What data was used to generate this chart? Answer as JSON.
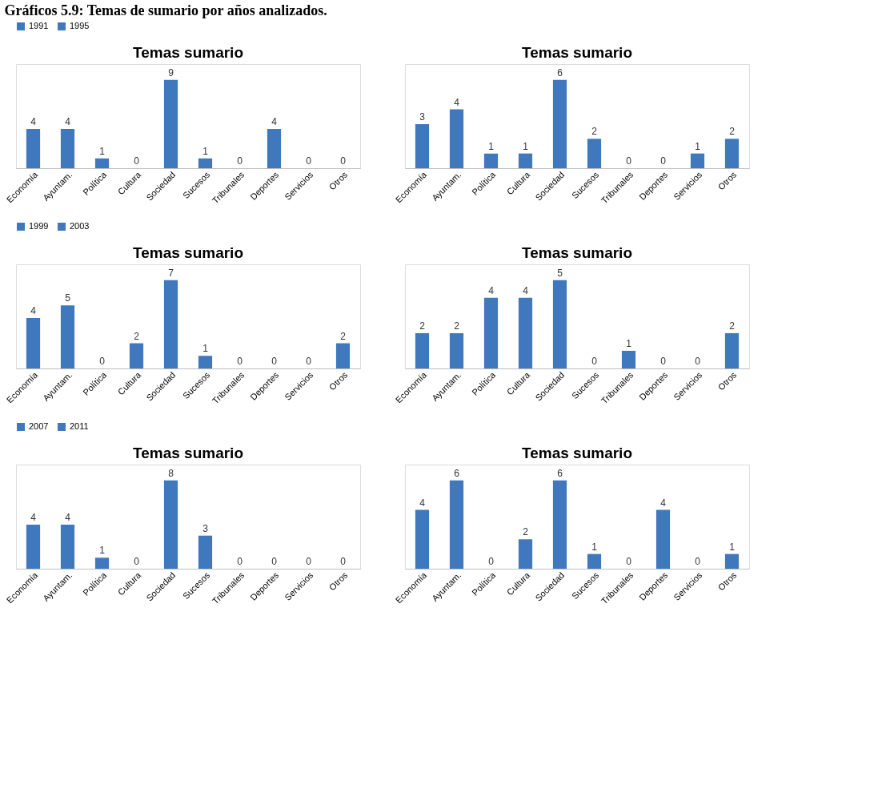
{
  "chart_data": [
    {
      "type": "bar",
      "title": "Temas sumario",
      "annotations": [
        "Gráficos 5.9: Temas de sumario por años analizados."
      ],
      "categories": [
        "Economía",
        "Ayuntam.",
        "Política",
        "Cultura",
        "Sociedad",
        "Sucesos",
        "Tribunales",
        "Deportes",
        "Servicios",
        "Otros"
      ],
      "series": [
        {
          "name": "1991",
          "color": "#4078be",
          "values": [
            4,
            4,
            1,
            0,
            9,
            1,
            0,
            4,
            0,
            0
          ]
        }
      ],
      "data_labels": true,
      "legend": "top",
      "tick_labels": "x",
      "grid": false
    },
    {
      "type": "bar",
      "title": "Temas sumario",
      "categories": [
        "Economía",
        "Ayuntam.",
        "Política",
        "Cultura",
        "Sociedad",
        "Sucesos",
        "Tribunales",
        "Deportes",
        "Servicios",
        "Otros"
      ],
      "series": [
        {
          "name": "1995",
          "color": "#4078be",
          "values": [
            3,
            4,
            1,
            1,
            6,
            2,
            0,
            0,
            1,
            2
          ]
        }
      ],
      "data_labels": true,
      "legend": "top",
      "tick_labels": "x",
      "grid": false
    },
    {
      "type": "bar",
      "title": "Temas sumario",
      "categories": [
        "Economía",
        "Ayuntam.",
        "Política",
        "Cultura",
        "Sociedad",
        "Sucesos",
        "Tribunales",
        "Deportes",
        "Servicios",
        "Otros"
      ],
      "series": [
        {
          "name": "1999",
          "color": "#4078be",
          "values": [
            4,
            5,
            0,
            2,
            7,
            1,
            0,
            0,
            0,
            2
          ]
        }
      ],
      "data_labels": true,
      "legend": "top",
      "tick_labels": "x",
      "grid": false
    },
    {
      "type": "bar",
      "title": "Temas sumario",
      "categories": [
        "Economía",
        "Ayuntam.",
        "Política",
        "Cultura",
        "Sociedad",
        "Sucesos",
        "Tribunales",
        "Deportes",
        "Servicios",
        "Otros"
      ],
      "series": [
        {
          "name": "2003",
          "color": "#4078be",
          "values": [
            2,
            2,
            4,
            4,
            5,
            0,
            1,
            0,
            0,
            2
          ]
        }
      ],
      "data_labels": true,
      "legend": "top",
      "tick_labels": "x",
      "grid": false
    },
    {
      "type": "bar",
      "title": "Temas sumario",
      "categories": [
        "Economía",
        "Ayuntam.",
        "Política",
        "Cultura",
        "Sociedad",
        "Sucesos",
        "Tribunales",
        "Deportes",
        "Servicios",
        "Otros"
      ],
      "series": [
        {
          "name": "2007",
          "color": "#4078be",
          "values": [
            4,
            4,
            1,
            0,
            8,
            3,
            0,
            0,
            0,
            0
          ]
        }
      ],
      "data_labels": true,
      "legend": "top",
      "tick_labels": "x",
      "grid": false
    },
    {
      "type": "bar",
      "title": "Temas sumario",
      "categories": [
        "Economía",
        "Ayuntam.",
        "Política",
        "Cultura",
        "Sociedad",
        "Sucesos",
        "Tribunales",
        "Deportes",
        "Servicios",
        "Otros"
      ],
      "series": [
        {
          "name": "2011",
          "color": "#4078be",
          "values": [
            4,
            6,
            0,
            2,
            6,
            1,
            0,
            4,
            0,
            1
          ]
        }
      ],
      "data_labels": true,
      "legend": "top",
      "tick_labels": "x",
      "grid": false
    }
  ]
}
